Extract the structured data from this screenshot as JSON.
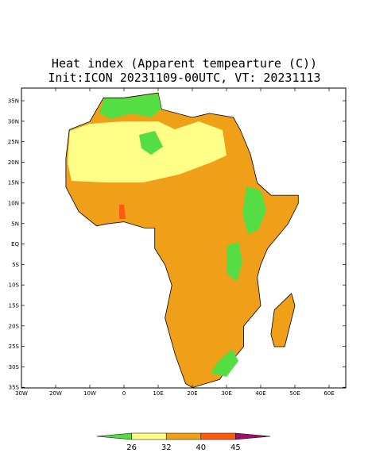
{
  "title": {
    "line1": "Heat index (Apparent tempearture (C))",
    "line2": "Init:ICON 20231109-00UTC, VT: 20231113"
  },
  "lat_labels": [
    "35N",
    "30N",
    "25N",
    "20N",
    "15N",
    "10N",
    "5N",
    "EQ",
    "5S",
    "10S",
    "15S",
    "20S",
    "25S",
    "30S",
    "35S"
  ],
  "lon_labels": [
    "30W",
    "20W",
    "10W",
    "0",
    "10E",
    "20E",
    "30E",
    "40E",
    "50E",
    "60E"
  ],
  "colorbar": {
    "labels": [
      26,
      32,
      40,
      45
    ],
    "colors": [
      "#55dd44",
      "#ffff88",
      "#f0a018",
      "#ff5a10",
      "#a0106a"
    ]
  }
}
